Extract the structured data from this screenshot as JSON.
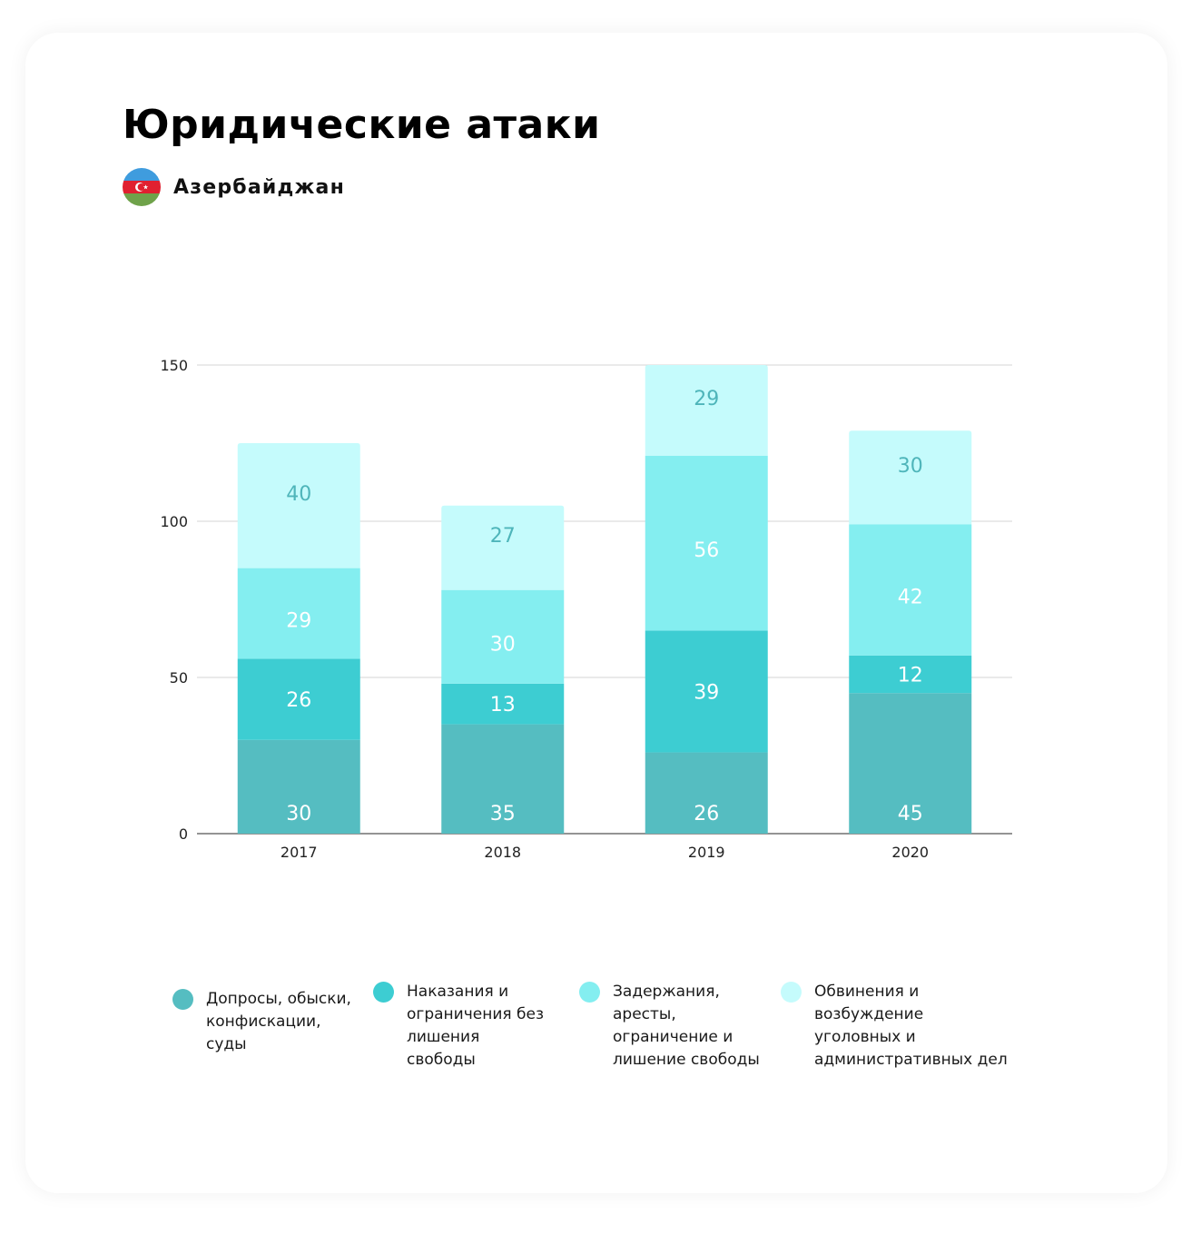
{
  "title": "Юридические атаки",
  "country": "Азербайджан",
  "chart_data": {
    "type": "bar",
    "stacked": true,
    "categories": [
      "2017",
      "2018",
      "2019",
      "2020"
    ],
    "series": [
      {
        "name": "Допросы, обыски, конфискации, суды",
        "values": [
          30,
          35,
          26,
          45
        ],
        "color": "#55BDC1"
      },
      {
        "name": "Наказания и ограничения без лишения свободы",
        "values": [
          26,
          13,
          39,
          12
        ],
        "color": "#3DCDD2"
      },
      {
        "name": "Задержания, аресты, ограничение и лишение свободы",
        "values": [
          29,
          30,
          56,
          42
        ],
        "color": "#84EEF0"
      },
      {
        "name": "Обвинения и возбуждение уголовных и административных дел",
        "values": [
          40,
          27,
          29,
          30
        ],
        "color": "#C5FBFC"
      }
    ],
    "yticks": [
      0,
      50,
      100,
      150
    ],
    "ylim": [
      0,
      150
    ],
    "grid": true,
    "legend_position": "bottom",
    "label_colors": {
      "light": "#FFFFFF",
      "dark": "#4EB5BA"
    }
  },
  "legend": {
    "items": [
      {
        "label": "Допросы, обыски, конфискации, суды",
        "color": "#55BDC1",
        "lines": [
          "Допросы, обыски,",
          "конфискации,",
          "суды"
        ]
      },
      {
        "label": "Наказания и ограничения без лишения свободы",
        "color": "#3DCDD2",
        "lines": [
          "Наказания и",
          "ограничения без",
          "лишения",
          "свободы"
        ]
      },
      {
        "label": "Задержания, аресты, ограничение и лишение свободы",
        "color": "#84EEF0",
        "lines": [
          "Задержания,",
          "аресты,",
          "ограничение и",
          "лишение свободы"
        ]
      },
      {
        "label": "Обвинения и возбуждение уголовных и административных дел",
        "color": "#C5FBFC",
        "lines": [
          "Обвинения и",
          "возбуждение",
          "уголовных и",
          "административных дел"
        ]
      }
    ]
  },
  "flag_colors": [
    "#3F9CDE",
    "#E02030",
    "#6FA24A"
  ]
}
